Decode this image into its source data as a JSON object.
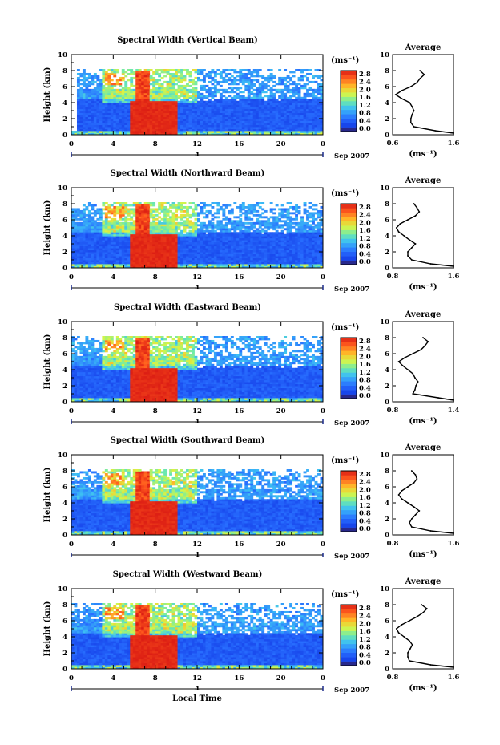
{
  "chart_data": [
    {
      "type": "heatmap",
      "title": "Spectral Width (Vertical Beam)",
      "ylabel": "Height (km)",
      "ylim": [
        0,
        10
      ],
      "yticks": [
        "0",
        "2",
        "4",
        "6",
        "8",
        "10"
      ],
      "xlim": [
        0,
        24
      ],
      "xticks": [
        "0",
        "4",
        "8",
        "12",
        "16",
        "20",
        "0"
      ],
      "date_marker": "4",
      "date_label": "Sep 2007",
      "colorbar": {
        "unit": "(ms⁻¹)",
        "ticks": [
          "2.8",
          "2.4",
          "2.0",
          "1.6",
          "1.2",
          "0.8",
          "0.4",
          "0.0"
        ],
        "range": [
          0,
          2.8
        ]
      },
      "average": {
        "title": "Average",
        "xlabel": "(ms⁻¹)",
        "xticks": [
          "0.6",
          "1.6"
        ],
        "xlim": [
          0.6,
          1.6
        ],
        "heights": [
          0.2,
          0.5,
          1,
          1.5,
          2,
          2.5,
          3,
          3.5,
          4,
          4.5,
          5,
          5.5,
          6,
          6.5,
          7,
          7.5,
          8
        ],
        "values": [
          1.6,
          1.3,
          0.95,
          0.9,
          0.9,
          0.92,
          0.95,
          0.92,
          0.88,
          0.75,
          0.65,
          0.75,
          0.9,
          1.0,
          1.05,
          1.12,
          1.05
        ]
      }
    },
    {
      "type": "heatmap",
      "title": "Spectral Width (Northward Beam)",
      "ylabel": "Height (km)",
      "ylim": [
        0,
        10
      ],
      "yticks": [
        "0",
        "2",
        "4",
        "6",
        "8",
        "10"
      ],
      "xlim": [
        0,
        24
      ],
      "xticks": [
        "0",
        "4",
        "8",
        "12",
        "16",
        "20",
        "0"
      ],
      "date_marker": "4",
      "date_label": "Sep 2007",
      "colorbar": {
        "unit": "(ms⁻¹)",
        "ticks": [
          "2.8",
          "2.4",
          "2.0",
          "1.6",
          "1.2",
          "0.8",
          "0.4",
          "0.0"
        ],
        "range": [
          0,
          2.8
        ]
      },
      "average": {
        "title": "Average",
        "xlabel": "(ms⁻¹)",
        "xticks": [
          "0.8",
          "1.6"
        ],
        "xlim": [
          0.8,
          1.6
        ],
        "heights": [
          0.2,
          0.5,
          1,
          1.5,
          2,
          2.5,
          3,
          3.5,
          4,
          4.5,
          5,
          5.5,
          6,
          6.5,
          7,
          7.5,
          8
        ],
        "values": [
          1.6,
          1.3,
          1.05,
          1.0,
          1.0,
          1.05,
          1.1,
          1.02,
          0.95,
          0.88,
          0.85,
          0.9,
          1.0,
          1.1,
          1.15,
          1.12,
          1.08
        ]
      }
    },
    {
      "type": "heatmap",
      "title": "Spectral Width (Eastward Beam)",
      "ylabel": "Height (km)",
      "ylim": [
        0,
        10
      ],
      "yticks": [
        "0",
        "2",
        "4",
        "6",
        "8",
        "10"
      ],
      "xlim": [
        0,
        24
      ],
      "xticks": [
        "0",
        "4",
        "8",
        "12",
        "16",
        "20",
        "0"
      ],
      "date_marker": "4",
      "date_label": "Sep 2007",
      "colorbar": {
        "unit": "(ms⁻¹)",
        "ticks": [
          "2.8",
          "2.4",
          "2.0",
          "1.6",
          "1.2",
          "0.8",
          "0.4",
          "0.0"
        ],
        "range": [
          0,
          2.8
        ]
      },
      "average": {
        "title": "Average",
        "xlabel": "(ms⁻¹)",
        "xticks": [
          "0.8",
          "1.4"
        ],
        "xlim": [
          0.8,
          1.4
        ],
        "heights": [
          0.2,
          0.5,
          1,
          1.5,
          2,
          2.5,
          3,
          3.5,
          4,
          4.5,
          5,
          5.5,
          6,
          6.5,
          7,
          7.5,
          8
        ],
        "values": [
          1.4,
          1.25,
          1.0,
          1.02,
          1.03,
          1.05,
          1.02,
          1.0,
          0.95,
          0.9,
          0.86,
          0.92,
          1.0,
          1.08,
          1.12,
          1.15,
          1.1
        ]
      }
    },
    {
      "type": "heatmap",
      "title": "Spectral Width (Southward Beam)",
      "ylabel": "Height (km)",
      "ylim": [
        0,
        10
      ],
      "yticks": [
        "0",
        "2",
        "4",
        "6",
        "8",
        "10"
      ],
      "xlim": [
        0,
        24
      ],
      "xticks": [
        "0",
        "4",
        "8",
        "12",
        "16",
        "20",
        "0"
      ],
      "date_marker": "4",
      "date_label": "Sep 2007",
      "colorbar": {
        "unit": "(ms⁻¹)",
        "ticks": [
          "2.8",
          "2.4",
          "2.0",
          "1.6",
          "1.2",
          "0.8",
          "0.4",
          "0.0"
        ],
        "range": [
          0,
          2.8
        ]
      },
      "average": {
        "title": "Average",
        "xlabel": "(ms⁻¹)",
        "xticks": [
          "0.8",
          "1.6"
        ],
        "xlim": [
          0.8,
          1.6
        ],
        "heights": [
          0.2,
          0.5,
          1,
          1.5,
          2,
          2.5,
          3,
          3.5,
          4,
          4.5,
          5,
          5.5,
          6,
          6.5,
          7,
          7.5,
          8
        ],
        "values": [
          1.6,
          1.3,
          1.05,
          1.02,
          1.05,
          1.1,
          1.15,
          1.08,
          1.0,
          0.92,
          0.88,
          0.92,
          1.0,
          1.08,
          1.12,
          1.1,
          1.05
        ]
      }
    },
    {
      "type": "heatmap",
      "title": "Spectral Width (Westward Beam)",
      "ylabel": "Height (km)",
      "ylim": [
        0,
        10
      ],
      "yticks": [
        "0",
        "2",
        "4",
        "6",
        "8",
        "10"
      ],
      "xlim": [
        0,
        24
      ],
      "xticks": [
        "0",
        "4",
        "8",
        "12",
        "16",
        "20",
        "0"
      ],
      "date_marker": "4",
      "date_label": "Sep 2007",
      "xlabel": "Local Time",
      "colorbar": {
        "unit": "(ms⁻¹)",
        "ticks": [
          "2.8",
          "2.4",
          "2.0",
          "1.6",
          "1.2",
          "0.8",
          "0.4",
          "0.0"
        ],
        "range": [
          0,
          2.8
        ]
      },
      "average": {
        "title": "Average",
        "xlabel": "(ms⁻¹)",
        "xticks": [
          "0.8",
          "1.6"
        ],
        "xlim": [
          0.8,
          1.6
        ],
        "heights": [
          0.2,
          0.5,
          1,
          1.5,
          2,
          2.5,
          3,
          3.5,
          4,
          4.5,
          5,
          5.5,
          6,
          6.5,
          7,
          7.5,
          8
        ],
        "values": [
          1.6,
          1.3,
          1.02,
          1.0,
          1.0,
          1.03,
          1.06,
          1.02,
          0.95,
          0.88,
          0.85,
          0.92,
          1.02,
          1.12,
          1.2,
          1.25,
          1.18
        ]
      }
    }
  ]
}
